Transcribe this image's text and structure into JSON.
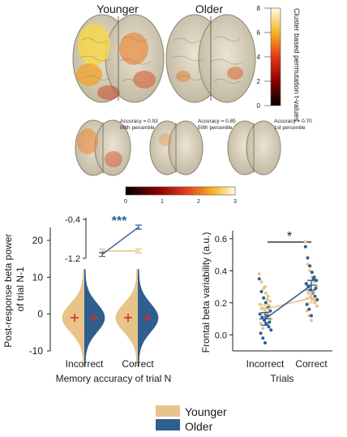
{
  "brain_panel": {
    "group_labels": [
      "Younger",
      "Older"
    ],
    "colorbar_top": {
      "label": "Cluster based permutation t-values",
      "ticks": [
        "8",
        "6",
        "4",
        "2",
        "0"
      ]
    },
    "subject_brains": [
      {
        "accuracy": "Accuracy = 0.93",
        "percentile": "99th percentile"
      },
      {
        "accuracy": "Accuracy = 0.85",
        "percentile": "50th percentile"
      },
      {
        "accuracy": "Accuracy = 0.70",
        "percentile": "1st percentile"
      }
    ],
    "colorbar_bottom": {
      "ticks": [
        "0",
        "1",
        "2",
        "3"
      ]
    }
  },
  "chart_data": [
    {
      "type": "violin",
      "ylabel": "Post-response beta power of trial N-1",
      "xlabel": "Memory accuracy of trial N",
      "categories": [
        "Incorrect",
        "Correct"
      ],
      "y_ticks": [
        20,
        10,
        0,
        -10
      ],
      "ylim": [
        -10,
        20
      ],
      "series": [
        {
          "name": "Younger",
          "color": "#e8c48a",
          "means": [
            -1,
            -1
          ]
        },
        {
          "name": "Older",
          "color": "#2e5f8f",
          "means": [
            -1,
            -1
          ]
        }
      ],
      "inset": {
        "y_ticks": [
          "-0.4",
          "-1.2"
        ],
        "ylim": [
          -1.2,
          -0.4
        ],
        "younger": [
          -1.05,
          -1.05
        ],
        "older": [
          -1.12,
          -0.56
        ],
        "significance": "***"
      }
    },
    {
      "type": "scatter",
      "ylabel": "Frontal beta variability (a.u.)",
      "xlabel": "Trials",
      "categories": [
        "Incorrect",
        "Correct"
      ],
      "y_ticks": [
        "0.6",
        "0.4",
        "0.2",
        "0.0"
      ],
      "ylim": [
        -0.1,
        0.65
      ],
      "significance": "*",
      "series": [
        {
          "name": "Younger",
          "color": "#e8c48a",
          "means": [
            0.16,
            0.23
          ],
          "sem": [
            0.03,
            0.03
          ]
        },
        {
          "name": "Older",
          "color": "#2e5f8f",
          "means": [
            0.1,
            0.31
          ],
          "sem": [
            0.04,
            0.03
          ]
        }
      ],
      "points": {
        "Younger": {
          "Incorrect": [
            0.38,
            0.33,
            0.29,
            0.26,
            0.24,
            0.21,
            0.19,
            0.17,
            0.16,
            0.14,
            0.12,
            0.1,
            0.07,
            0.04,
            0.3,
            0.22,
            0.18
          ],
          "Correct": [
            0.58,
            0.44,
            0.4,
            0.36,
            0.33,
            0.3,
            0.28,
            0.26,
            0.24,
            0.22,
            0.2,
            0.18,
            0.15,
            0.12,
            0.09,
            0.27,
            0.21
          ]
        },
        "Older": {
          "Incorrect": [
            0.35,
            0.27,
            0.23,
            0.2,
            0.17,
            0.15,
            0.13,
            0.11,
            0.09,
            0.07,
            0.05,
            0.03,
            0.01,
            -0.02,
            -0.05,
            0.12,
            0.08
          ],
          "Correct": [
            0.55,
            0.48,
            0.43,
            0.39,
            0.36,
            0.34,
            0.32,
            0.3,
            0.28,
            0.26,
            0.24,
            0.22,
            0.19,
            0.16,
            0.12,
            0.35,
            0.29
          ]
        }
      }
    }
  ],
  "legend": {
    "items": [
      {
        "label": "Younger",
        "color": "#e8c48a"
      },
      {
        "label": "Older",
        "color": "#2e5f8f"
      }
    ]
  }
}
